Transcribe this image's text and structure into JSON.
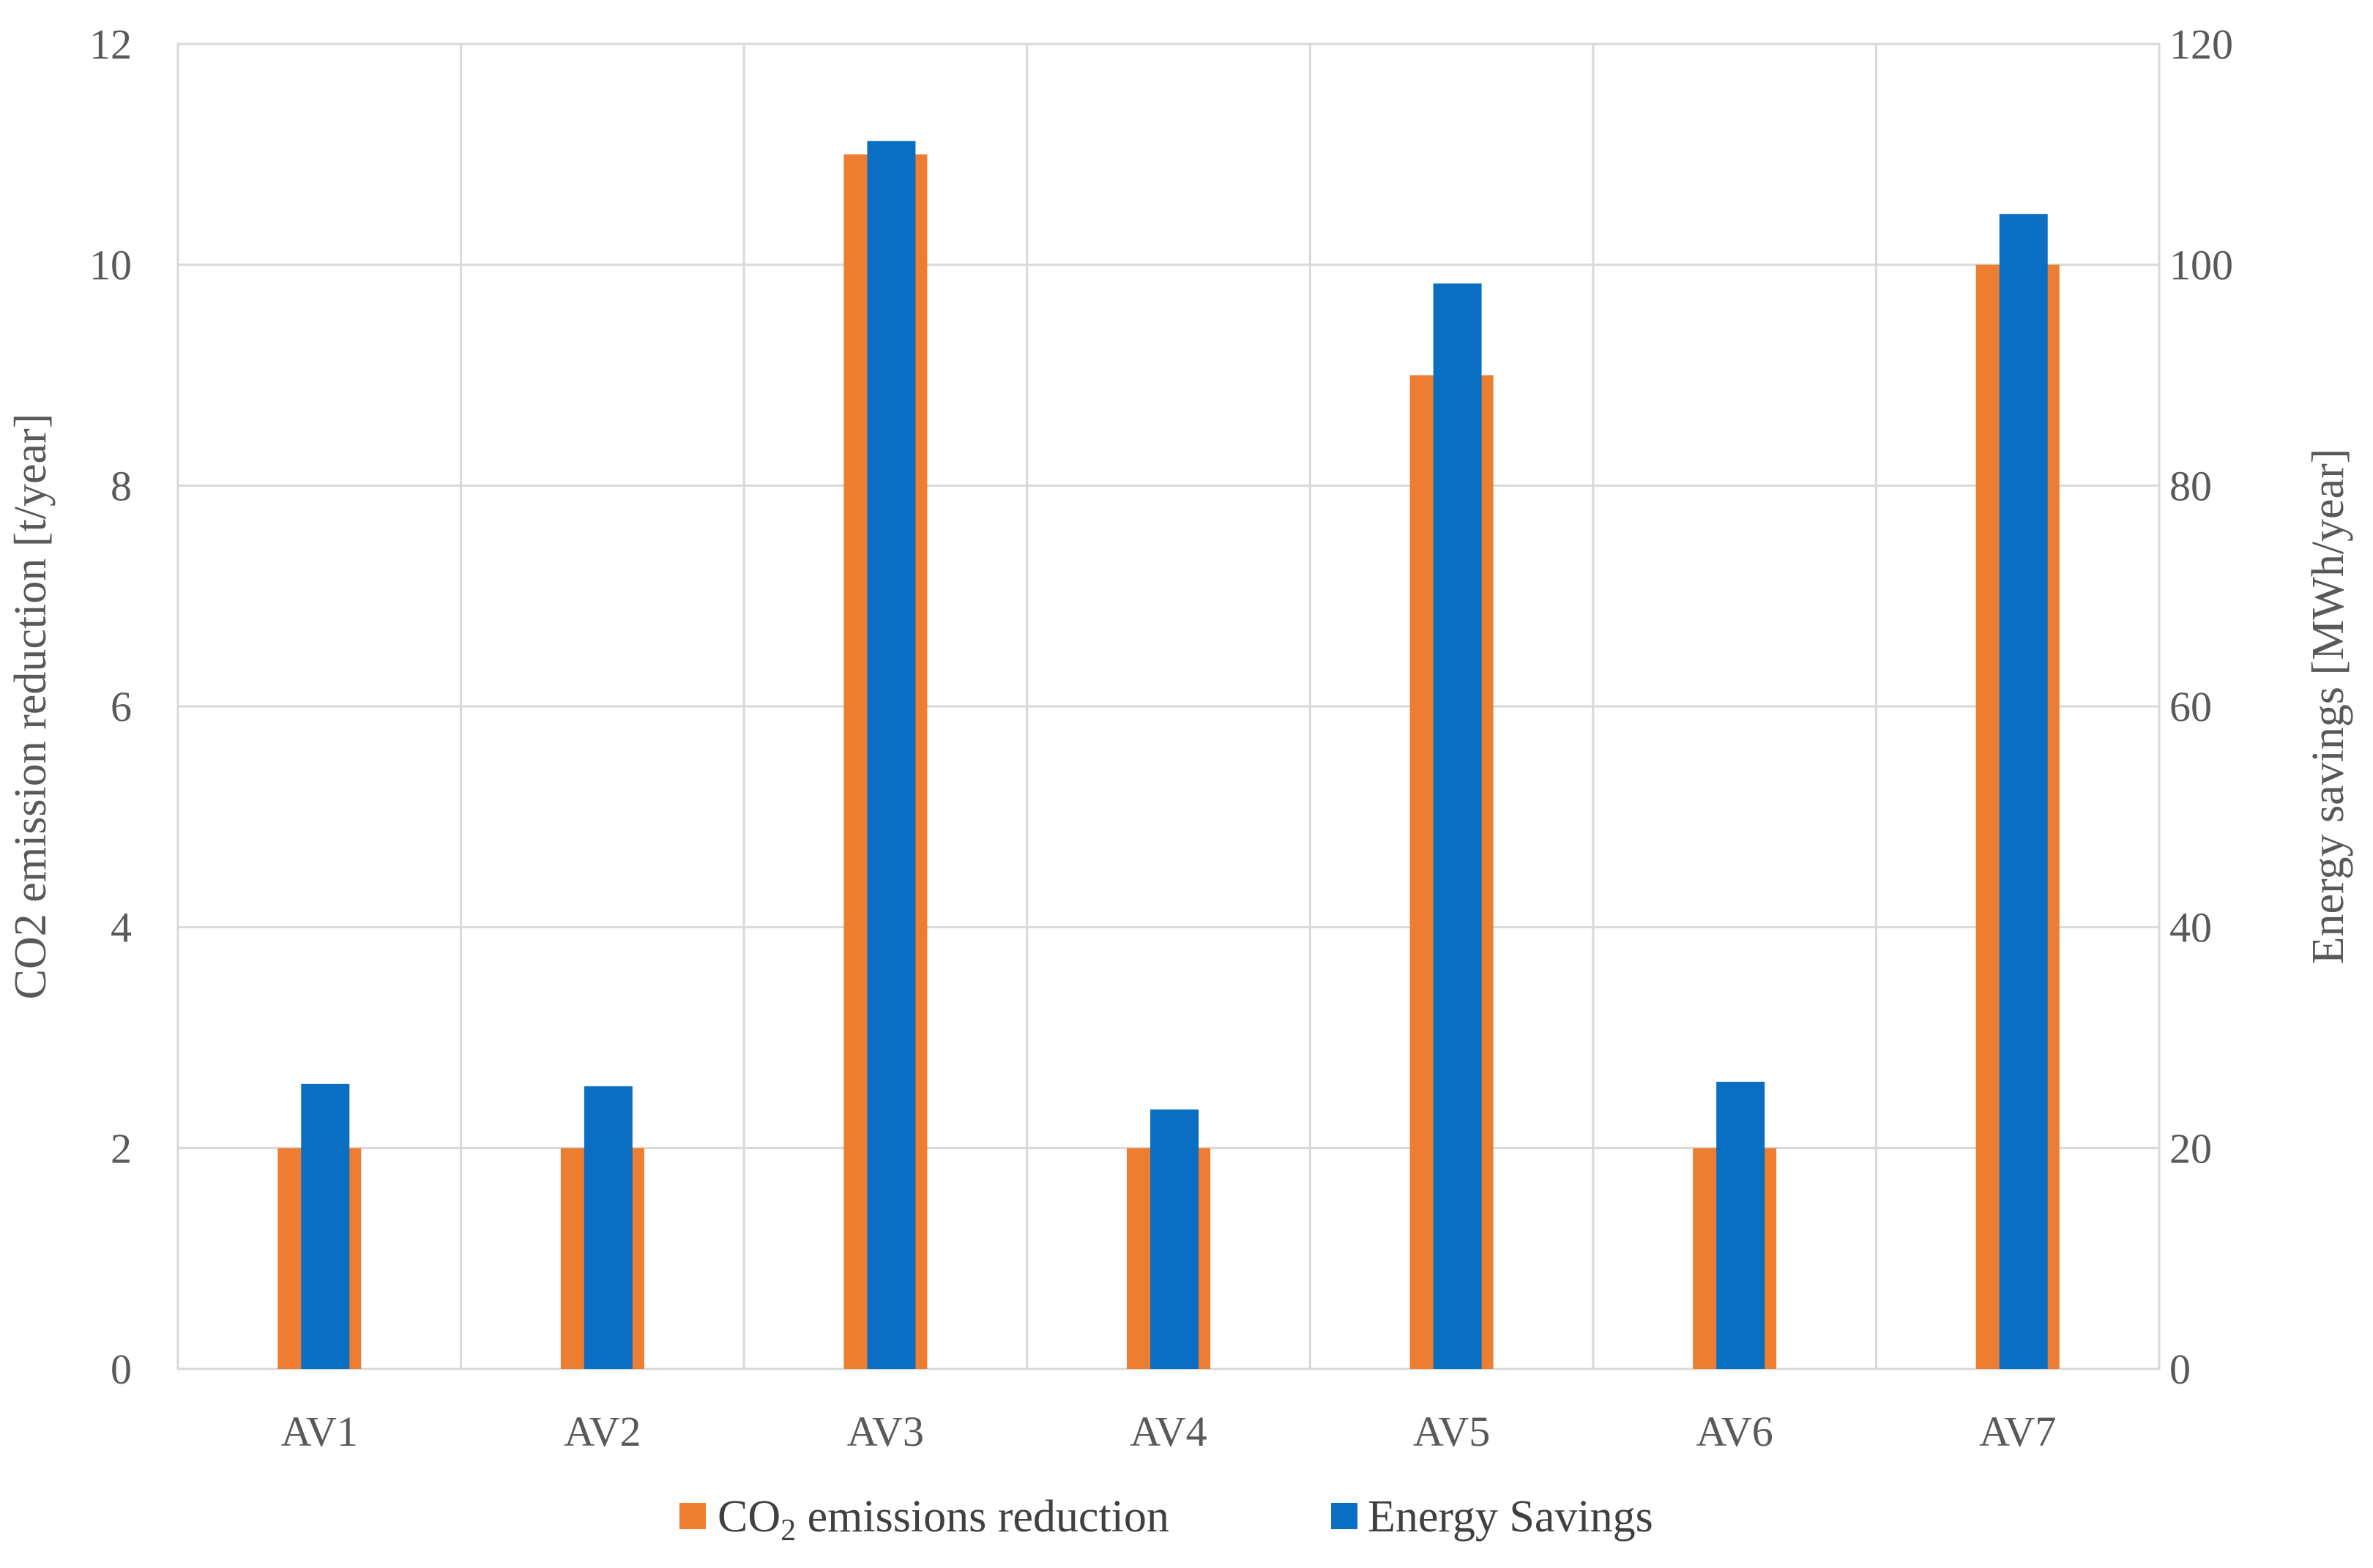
{
  "chart_data": {
    "type": "bar",
    "categories": [
      "AV1",
      "AV2",
      "AV3",
      "AV4",
      "AV5",
      "AV6",
      "AV7"
    ],
    "series": [
      {
        "name": "CO2 emissions reduction",
        "legend_main": "CO",
        "legend_sub": "2",
        "legend_rest": " emissions reduction",
        "axis": "left",
        "color": "#ed7d31",
        "values": [
          2,
          2,
          11,
          2,
          9,
          2,
          10
        ]
      },
      {
        "name": "Energy Savings",
        "axis": "right",
        "color": "#0a6fc2",
        "values": [
          25.8,
          25.6,
          111.2,
          23.5,
          98.3,
          26.0,
          104.6
        ]
      }
    ],
    "y_left": {
      "label": "CO2 emission reduction [t/year]",
      "ylim": [
        0,
        12
      ],
      "ticks": [
        0,
        2,
        4,
        6,
        8,
        10,
        12
      ]
    },
    "y_right": {
      "label": "Energy savings [MWh/year]",
      "ylim": [
        0,
        120
      ],
      "ticks": [
        0,
        20,
        40,
        60,
        80,
        100,
        120
      ]
    },
    "grid": true,
    "legend_position": "bottom"
  }
}
